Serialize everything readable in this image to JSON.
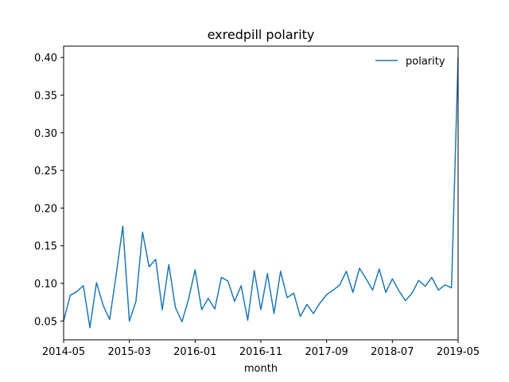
{
  "chart_data": {
    "type": "line",
    "title": "exredpill polarity",
    "xlabel": "month",
    "ylabel": "",
    "x_ticks": [
      "2014-05",
      "2015-03",
      "2016-01",
      "2016-11",
      "2017-09",
      "2018-07",
      "2019-05"
    ],
    "y_ticks": [
      "0.05",
      "0.10",
      "0.15",
      "0.20",
      "0.25",
      "0.30",
      "0.35",
      "0.40"
    ],
    "ylim": [
      0.025,
      0.415
    ],
    "x_start": "2014-05",
    "x_end": "2019-05",
    "legend_position": "top-right",
    "series": [
      {
        "name": "polarity",
        "color": "#1f77b4",
        "x": [
          "2014-05",
          "2014-06",
          "2014-07",
          "2014-08",
          "2014-09",
          "2014-10",
          "2014-11",
          "2014-12",
          "2015-01",
          "2015-02",
          "2015-03",
          "2015-04",
          "2015-05",
          "2015-06",
          "2015-07",
          "2015-08",
          "2015-09",
          "2015-10",
          "2015-11",
          "2015-12",
          "2016-01",
          "2016-02",
          "2016-03",
          "2016-04",
          "2016-05",
          "2016-06",
          "2016-07",
          "2016-08",
          "2016-09",
          "2016-10",
          "2016-11",
          "2016-12",
          "2017-01",
          "2017-02",
          "2017-03",
          "2017-04",
          "2017-05",
          "2017-06",
          "2017-07",
          "2017-08",
          "2017-09",
          "2017-10",
          "2017-11",
          "2017-12",
          "2018-01",
          "2018-02",
          "2018-03",
          "2018-04",
          "2018-05",
          "2018-06",
          "2018-07",
          "2018-08",
          "2018-09",
          "2018-10",
          "2018-11",
          "2018-12",
          "2019-01",
          "2019-02",
          "2019-03",
          "2019-04",
          "2019-05"
        ],
        "values": [
          0.05,
          0.084,
          0.089,
          0.097,
          0.041,
          0.101,
          0.071,
          0.052,
          0.112,
          0.176,
          0.05,
          0.076,
          0.168,
          0.122,
          0.132,
          0.065,
          0.125,
          0.068,
          0.049,
          0.079,
          0.118,
          0.065,
          0.08,
          0.066,
          0.108,
          0.103,
          0.076,
          0.097,
          0.051,
          0.117,
          0.065,
          0.113,
          0.06,
          0.116,
          0.081,
          0.087,
          0.056,
          0.072,
          0.06,
          0.074,
          0.085,
          0.091,
          0.098,
          0.116,
          0.088,
          0.12,
          0.106,
          0.091,
          0.119,
          0.088,
          0.106,
          0.09,
          0.077,
          0.087,
          0.104,
          0.096,
          0.108,
          0.091,
          0.098,
          0.094,
          0.4
        ]
      }
    ]
  }
}
